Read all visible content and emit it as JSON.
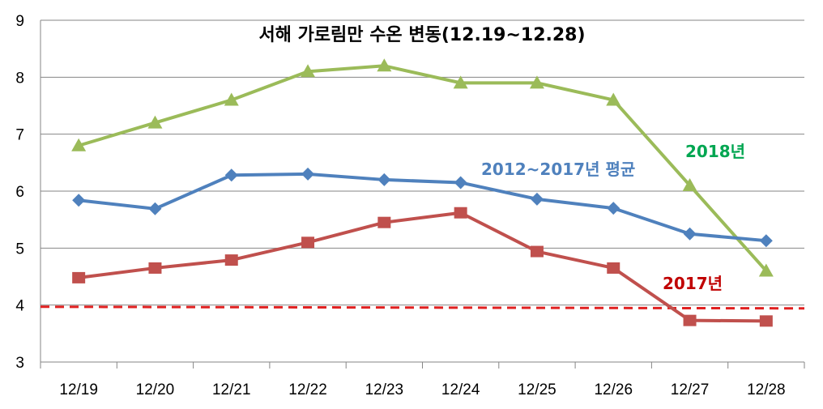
{
  "chart_data": {
    "type": "line",
    "title": "서해 가로림만 수온 변동(12.19~12.28)",
    "categories": [
      "12/19",
      "12/20",
      "12/21",
      "12/22",
      "12/23",
      "12/24",
      "12/25",
      "12/26",
      "12/27",
      "12/28"
    ],
    "ylim": [
      3,
      9
    ],
    "yticks": [
      "3",
      "4",
      "5",
      "6",
      "7",
      "8",
      "9"
    ],
    "grid": true,
    "series": [
      {
        "name": "2018년",
        "color": "#9BBB59",
        "marker": "triangle",
        "values": [
          6.8,
          7.2,
          7.6,
          8.1,
          8.2,
          7.9,
          7.9,
          7.6,
          6.1,
          4.6
        ]
      },
      {
        "name": "2012~2017년 평균",
        "color": "#4F81BD",
        "marker": "diamond",
        "values": [
          5.84,
          5.69,
          6.28,
          6.3,
          6.2,
          6.15,
          5.86,
          5.7,
          5.25,
          5.13
        ]
      },
      {
        "name": "2017년",
        "color": "#C0504D",
        "marker": "square",
        "values": [
          4.48,
          4.65,
          4.79,
          5.1,
          5.45,
          5.62,
          4.94,
          4.65,
          3.73,
          3.72
        ]
      }
    ],
    "reference_line": {
      "value": 3.97,
      "color": "#E02020",
      "style": "dashed"
    },
    "label_colors": {
      "2018년": "#00A651",
      "2012~2017년 평균": "#4F81BD",
      "2017년": "#C00000"
    }
  }
}
